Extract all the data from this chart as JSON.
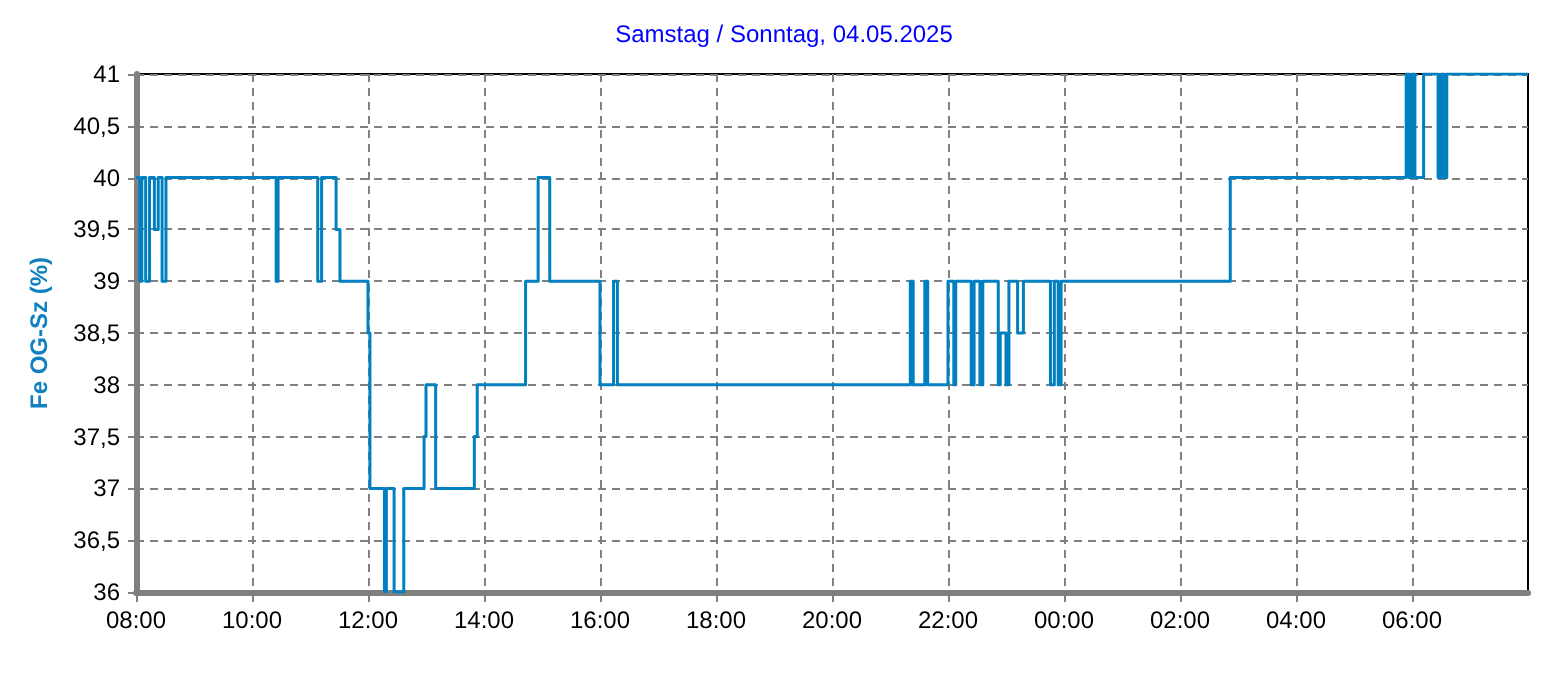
{
  "chart_data": {
    "type": "step",
    "title": "Samstag / Sonntag, 04.05.2025",
    "ylabel": "Fe OG-Sz (%)",
    "x": [
      "2025-05-03T08:00",
      "2025-05-03T08:04",
      "2025-05-03T08:06",
      "2025-05-03T08:10",
      "2025-05-03T08:14",
      "2025-05-03T08:19",
      "2025-05-03T08:23",
      "2025-05-03T08:27",
      "2025-05-03T08:31",
      "2025-05-03T10:25",
      "2025-05-03T10:27",
      "2025-05-03T11:08",
      "2025-05-03T11:12",
      "2025-05-03T11:27",
      "2025-05-03T11:31",
      "2025-05-03T12:00",
      "2025-05-03T12:02",
      "2025-05-03T12:17",
      "2025-05-03T12:19",
      "2025-05-03T12:27",
      "2025-05-03T12:37",
      "2025-05-03T12:58",
      "2025-05-03T13:00",
      "2025-05-03T13:10",
      "2025-05-03T13:50",
      "2025-05-03T13:53",
      "2025-05-03T14:43",
      "2025-05-03T14:56",
      "2025-05-03T15:08",
      "2025-05-03T16:00",
      "2025-05-03T16:14",
      "2025-05-03T16:18",
      "2025-05-03T21:21",
      "2025-05-03T21:24",
      "2025-05-03T21:36",
      "2025-05-03T21:39",
      "2025-05-03T22:00",
      "2025-05-03T22:06",
      "2025-05-03T22:08",
      "2025-05-03T22:24",
      "2025-05-03T22:27",
      "2025-05-03T22:33",
      "2025-05-03T22:36",
      "2025-05-03T22:52",
      "2025-05-03T22:54",
      "2025-05-03T23:00",
      "2025-05-03T23:03",
      "2025-05-03T23:12",
      "2025-05-03T23:18",
      "2025-05-03T23:46",
      "2025-05-03T23:50",
      "2025-05-03T23:54",
      "2025-05-03T23:57",
      "2025-05-04T02:52",
      "2025-05-04T05:54",
      "2025-05-04T05:57",
      "2025-05-04T06:00",
      "2025-05-04T06:03",
      "2025-05-04T06:12",
      "2025-05-04T06:27",
      "2025-05-04T06:30",
      "2025-05-04T06:33",
      "2025-05-04T06:36",
      "2025-05-04T08:00"
    ],
    "series": [
      {
        "color": "#0080c0",
        "values": [
          40,
          39,
          40,
          39,
          40,
          39.5,
          40,
          39,
          40,
          39,
          40,
          39,
          40,
          39.5,
          39,
          38.5,
          37,
          36,
          37,
          36,
          37,
          37.5,
          38,
          37,
          37.5,
          38,
          39,
          40,
          39,
          38,
          39,
          38,
          39,
          38,
          39,
          38,
          39,
          38,
          39,
          38,
          39,
          38,
          39,
          38,
          38.5,
          38,
          39,
          38.5,
          39,
          38,
          39,
          38,
          39,
          40,
          41,
          40,
          41,
          40,
          41,
          40,
          41,
          40,
          41,
          41
        ]
      }
    ],
    "xlim": [
      "2025-05-03T08:00",
      "2025-05-04T08:00"
    ],
    "xticks": [
      {
        "value": "2025-05-03T08:00",
        "label": "08:00"
      },
      {
        "value": "2025-05-03T10:00",
        "label": "10:00"
      },
      {
        "value": "2025-05-03T12:00",
        "label": "12:00"
      },
      {
        "value": "2025-05-03T14:00",
        "label": "14:00"
      },
      {
        "value": "2025-05-03T16:00",
        "label": "16:00"
      },
      {
        "value": "2025-05-03T18:00",
        "label": "18:00"
      },
      {
        "value": "2025-05-03T20:00",
        "label": "20:00"
      },
      {
        "value": "2025-05-03T22:00",
        "label": "22:00"
      },
      {
        "value": "2025-05-04T00:00",
        "label": "00:00"
      },
      {
        "value": "2025-05-04T02:00",
        "label": "02:00"
      },
      {
        "value": "2025-05-04T04:00",
        "label": "04:00"
      },
      {
        "value": "2025-05-04T06:00",
        "label": "06:00"
      }
    ],
    "ylim": [
      36,
      41
    ],
    "yticks": [
      {
        "value": 36,
        "label": "36"
      },
      {
        "value": 36.5,
        "label": "36,5"
      },
      {
        "value": 37,
        "label": "37"
      },
      {
        "value": 37.5,
        "label": "37,5"
      },
      {
        "value": 38,
        "label": "38"
      },
      {
        "value": 38.5,
        "label": "38,5"
      },
      {
        "value": 39,
        "label": "39"
      },
      {
        "value": 39.5,
        "label": "39,5"
      },
      {
        "value": 40,
        "label": "40"
      },
      {
        "value": 40.5,
        "label": "40,5"
      },
      {
        "value": 41,
        "label": "41"
      }
    ],
    "grid": true,
    "marker": "none",
    "line_style": "solid"
  }
}
